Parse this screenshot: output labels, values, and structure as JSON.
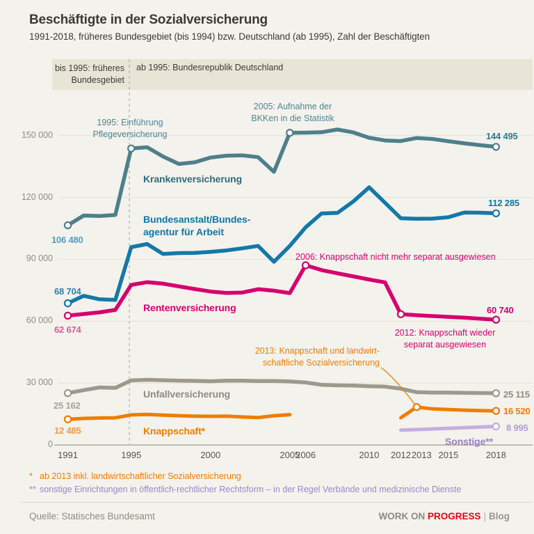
{
  "header": {
    "title": "Beschäftigte in der Sozialversicherung",
    "subtitle": "1991-2018, früheres Bundesgebiet (bis 1994) bzw. Deutschland (ab 1995), Zahl der Beschäftigten"
  },
  "band": {
    "left_label": "bis 1995: früheres\nBundesgebiet",
    "right_label": "ab 1995: Bundesrepublik Deutschland",
    "background": "#e8e5d7"
  },
  "chart_data": {
    "type": "line",
    "ylim": [
      0,
      150000
    ],
    "grid": true,
    "x": [
      1991,
      1992,
      1993,
      1994,
      1995,
      1996,
      1997,
      1998,
      1999,
      2000,
      2001,
      2002,
      2003,
      2004,
      2005,
      2006,
      2007,
      2008,
      2009,
      2010,
      2011,
      2012,
      2013,
      2014,
      2015,
      2016,
      2017,
      2018
    ],
    "x_ticks": [
      {
        "year": 1991,
        "label": "1991"
      },
      {
        "year": 1995,
        "label": "1995"
      },
      {
        "year": 2000,
        "label": "2000"
      },
      {
        "year": 2005,
        "label": "2005"
      },
      {
        "year": 2006,
        "label": "2006"
      },
      {
        "year": 2010,
        "label": "2010"
      },
      {
        "year": 2012,
        "label": "2012"
      },
      {
        "year": 2013,
        "label": "2013"
      },
      {
        "year": 2015,
        "label": "2015"
      },
      {
        "year": 2018,
        "label": "2018"
      }
    ],
    "y_ticks": [
      {
        "value": 0,
        "label": "0"
      },
      {
        "value": 30000,
        "label": "30 000"
      },
      {
        "value": 60000,
        "label": "60 000"
      },
      {
        "value": 90000,
        "label": "90 000"
      },
      {
        "value": 120000,
        "label": "120 000"
      },
      {
        "value": 150000,
        "label": "150 000"
      }
    ],
    "series": [
      {
        "id": "krankenversicherung",
        "label": "Krankenversicherung",
        "color": "#4e7f8b",
        "label_color": "#2e6b7c",
        "start_label": "106 480",
        "start_label_color": "#4fa0bc",
        "end_label": "144 495",
        "end_label_color": "#2f7a90",
        "markers": [
          1991,
          1995,
          2005,
          2018
        ],
        "values": [
          106480,
          111200,
          111000,
          111500,
          143700,
          144300,
          139800,
          136200,
          137000,
          139300,
          140200,
          140400,
          139500,
          132400,
          151300,
          151400,
          151600,
          152900,
          151500,
          148900,
          147600,
          147300,
          148800,
          148300,
          147200,
          146200,
          145300,
          144495
        ]
      },
      {
        "id": "bundesagentur-fuer-arbeit",
        "label": "Bundesanstalt/Bundes-\nagentur für Arbeit",
        "color": "#1478a8",
        "label_color": "#0e76a8",
        "start_label": "68 704",
        "start_label_color": "#2d83ad",
        "end_label": "112 285",
        "end_label_color": "#0e76a8",
        "markers": [
          1991,
          2018
        ],
        "values": [
          68704,
          72300,
          70600,
          70300,
          95900,
          97400,
          92600,
          93000,
          93100,
          93600,
          94300,
          95300,
          96500,
          88800,
          96500,
          105500,
          112200,
          112500,
          118000,
          124900,
          117400,
          109900,
          109600,
          109700,
          110400,
          112700,
          112600,
          112285
        ]
      },
      {
        "id": "rentenversicherung",
        "label": "Rentenversicherung",
        "color": "#d5006f",
        "label_color": "#d5006f",
        "start_label": "62 674",
        "start_label_color": "#e25a9d",
        "end_label": "60 740",
        "end_label_color": "#d5006f",
        "markers": [
          1991,
          2006,
          2012,
          2018
        ],
        "values": [
          62674,
          63500,
          64300,
          65500,
          77600,
          78900,
          78200,
          76900,
          75600,
          74400,
          73700,
          73900,
          75500,
          74800,
          73600,
          87100,
          84800,
          83200,
          81700,
          80200,
          78800,
          63400,
          62900,
          62500,
          62100,
          61700,
          61200,
          60740
        ]
      },
      {
        "id": "unfallversicherung",
        "label": "Unfallversicherung",
        "color": "#9d998e",
        "label_color": "#8f8b80",
        "start_label": "25 162",
        "start_label_color": "#a5a196",
        "end_label": "25 115",
        "end_label_color": "#8f8b80",
        "markers": [
          1991,
          2018
        ],
        "values": [
          25162,
          26600,
          27900,
          27700,
          31300,
          31600,
          31400,
          31200,
          31100,
          30900,
          31200,
          31200,
          31000,
          31000,
          30800,
          30300,
          29200,
          28900,
          28800,
          28500,
          28300,
          27300,
          25600,
          25400,
          25400,
          25300,
          25200,
          25115
        ]
      },
      {
        "id": "knappschaft",
        "label": "Knappschaft*",
        "color": "#ef7d00",
        "label_color": "#ef7d00",
        "start_label": "12 485",
        "start_label_color": "#f49a3d",
        "end_label": "16 520",
        "end_label_color": "#ef7d00",
        "markers": [
          1991,
          2013,
          2018
        ],
        "values": [
          12485,
          12900,
          13100,
          13200,
          14600,
          14800,
          14500,
          14200,
          14000,
          13900,
          14000,
          13600,
          13300,
          14200,
          14700,
          null,
          null,
          null,
          null,
          null,
          null,
          13200,
          18400,
          17500,
          17200,
          16900,
          16700,
          16520
        ]
      },
      {
        "id": "sonstige",
        "label": "Sonstige**",
        "color": "#c3aee0",
        "label_color": "#9b7fc4",
        "end_label": "8 995",
        "end_label_color": "#b29cd6",
        "markers": [
          2018
        ],
        "values": [
          null,
          null,
          null,
          null,
          null,
          null,
          null,
          null,
          null,
          null,
          null,
          null,
          null,
          null,
          null,
          null,
          null,
          null,
          null,
          null,
          null,
          7200,
          7500,
          7800,
          8100,
          8400,
          8700,
          8995
        ]
      }
    ],
    "annotations": [
      {
        "id": "pflegeversicherung-1995",
        "text": "1995: Einführung\nPflegeversicherung",
        "color": "#4d8596"
      },
      {
        "id": "bkken-2005",
        "text": "2005: Aufnahme der\nBKKen in die Statistik",
        "color": "#4d8596"
      },
      {
        "id": "knappschaft-2006",
        "text": "2006: Knappschaft nicht mehr separat ausgewiesen",
        "color": "#d5006f"
      },
      {
        "id": "knappschaft-2012",
        "text": "2012: Knappschaft wieder\nseparat ausgewiesen",
        "color": "#d5006f"
      },
      {
        "id": "knappschaft-2013",
        "text": "2013: Knappschaft und landwirt-\nschaftliche Sozialversicherung",
        "color": "#ef7d00"
      }
    ],
    "colors": {
      "grid": "#e4e1d5",
      "axis": "#a9a59a",
      "dashed_line": "#b3afa4",
      "marker_fill": "#fdfdfb"
    }
  },
  "footnotes": {
    "star_symbol": "*",
    "star_text": "ab 2013 inkl. landwirtschaftlicher Sozialversicherung",
    "star_color": "#ef7d00",
    "doublestar_symbol": "**",
    "doublestar_text": "sonstige Einrichtungen in öffentlich-rechtlicher Rechtsform – in der Regel Verbände und medizinische Dienste",
    "doublestar_color": "#9b86c9"
  },
  "footer": {
    "source": "Quelle: Statisches Bundesamt",
    "brand_left": "WORK ON ",
    "brand_accent": "PROGRESS",
    "brand_divider": "|",
    "brand_right": "Blog",
    "accent_color": "#e30613"
  }
}
